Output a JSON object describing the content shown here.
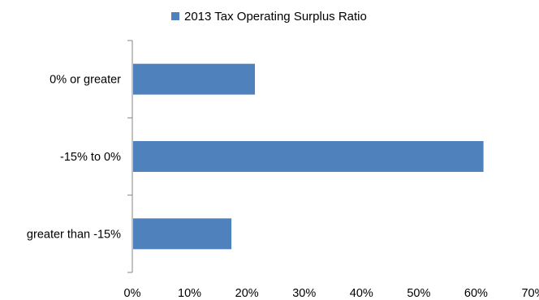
{
  "chart_data": {
    "type": "bar",
    "orientation": "horizontal",
    "categories": [
      "0% or greater",
      "-15% to 0%",
      "greater than -15%"
    ],
    "series": [
      {
        "name": "2013 Tax Operating Surplus Ratio",
        "values": [
          21.4,
          61.3,
          17.3
        ],
        "color": "#4F81BD"
      }
    ],
    "value_unit": "%",
    "xlim": [
      0,
      70
    ],
    "x_ticks": [
      "0%",
      "10%",
      "20%",
      "30%",
      "40%",
      "50%",
      "60%",
      "70%"
    ],
    "grid": false,
    "legend_position": "top"
  }
}
